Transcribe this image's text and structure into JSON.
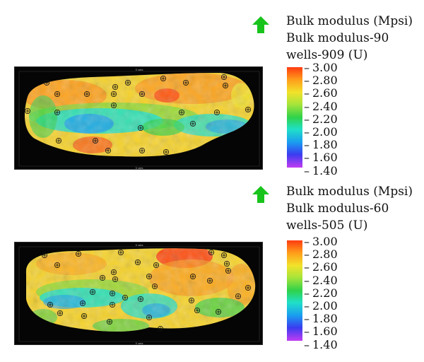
{
  "panels": [
    {
      "id": "top",
      "legend": {
        "line1": "Bulk modulus (Mpsi)",
        "line2": "Bulk modulus-90",
        "line3": "wells-909 (U)"
      },
      "scale_ticks": [
        "3.00",
        "2.80",
        "2.60",
        "2.40",
        "2.20",
        "2.00",
        "1.80",
        "1.60",
        "1.40"
      ],
      "arrow_color": "#18c41c"
    },
    {
      "id": "bottom",
      "legend": {
        "line1": "Bulk modulus (Mpsi)",
        "line2": "Bulk modulus-60",
        "line3": "wells-505 (U)"
      },
      "scale_ticks": [
        "3.00",
        "2.80",
        "2.60",
        "2.40",
        "2.20",
        "2.00",
        "1.80",
        "1.60",
        "1.40"
      ],
      "arrow_color": "#18c41c"
    }
  ],
  "colors": {
    "high": "#ff3b10",
    "mid_high": "#f2e22a",
    "mid": "#2fd24a",
    "mid_low": "#20e0c8",
    "low": "#1a9cf0",
    "map_background": "#050505"
  }
}
